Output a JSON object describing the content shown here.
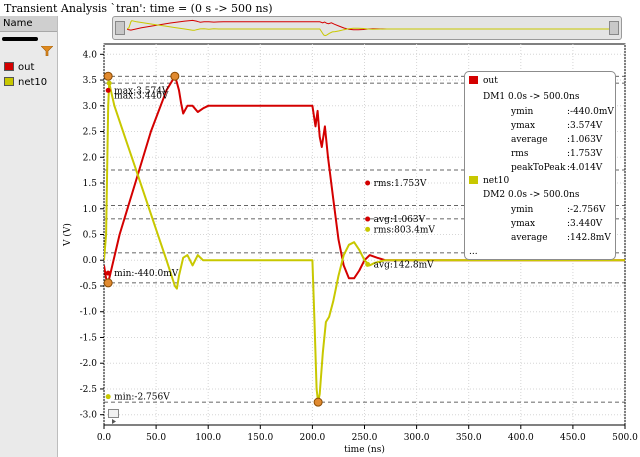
{
  "window": {
    "title": "Transient Analysis `tran': time = (0 s -> 500 ns)"
  },
  "legend": {
    "header": "Name",
    "items": [
      {
        "label": "out",
        "color": "#d40000"
      },
      {
        "label": "net10",
        "color": "#c8c800"
      }
    ]
  },
  "markers": {
    "out_max": "max:3.574V",
    "out_min": "min:-440.0mV",
    "out_rms": "rms:1.753V",
    "out_avg": "avg:1.063V",
    "net10_max": "max:3.440V",
    "net10_min": "min:-2.756V",
    "net10_rms": "rms:803.4mV",
    "net10_avg": "avg:142.8mV"
  },
  "info_box": {
    "out": {
      "name": "out",
      "range": "DM1 0.0s -> 500.0ns",
      "rows": [
        {
          "key": "ymin",
          "value": ":-440.0mV"
        },
        {
          "key": "ymax",
          "value": ":3.574V"
        },
        {
          "key": "average",
          "value": ":1.063V"
        },
        {
          "key": "rms",
          "value": ":1.753V"
        },
        {
          "key": "peakToPeak",
          "value": ":4.014V"
        }
      ]
    },
    "net10": {
      "name": "net10",
      "range": "DM2 0.0s -> 500.0ns",
      "rows": [
        {
          "key": "ymin",
          "value": ":-2.756V"
        },
        {
          "key": "ymax",
          "value": ":3.440V"
        },
        {
          "key": "average",
          "value": ":142.8mV"
        }
      ]
    },
    "more": "..."
  },
  "chart_data": {
    "type": "line",
    "xlabel": "time (ns)",
    "ylabel": "V (V)",
    "xlim": [
      0,
      500
    ],
    "ylim": [
      -3.2,
      4.2
    ],
    "xticks": [
      "0.0",
      "50.0",
      "100.0",
      "150.0",
      "200.0",
      "250.0",
      "300.0",
      "350.0",
      "400.0",
      "450.0",
      "500.0"
    ],
    "yticks": [
      "4.0",
      "3.5",
      "3.0",
      "2.5",
      "2.0",
      "1.5",
      "1.0",
      "0.5",
      "0.0",
      "-0.5",
      "-1.0",
      "-1.5",
      "-2.0",
      "-2.5",
      "-3.0"
    ],
    "grid": true,
    "reference_lines": [
      3.574,
      3.44,
      1.753,
      1.063,
      0.803,
      0.143,
      -0.44,
      -2.756
    ],
    "series": [
      {
        "name": "out",
        "color": "#d40000",
        "x": [
          0,
          2,
          4,
          15,
          30,
          45,
          60,
          68,
          70,
          72,
          74,
          76,
          80,
          85,
          90,
          95,
          100,
          120,
          150,
          180,
          198,
          200,
          203,
          205,
          207,
          209,
          212,
          215,
          220,
          225,
          230,
          235,
          240,
          245,
          250,
          255,
          262,
          270,
          300,
          350,
          400,
          450,
          500
        ],
        "y": [
          -0.1,
          -0.35,
          -0.44,
          0.5,
          1.5,
          2.5,
          3.3,
          3.574,
          3.45,
          3.3,
          3.05,
          2.85,
          3.0,
          3.0,
          2.88,
          2.95,
          3.0,
          3.0,
          3.0,
          3.0,
          3.0,
          3.0,
          2.6,
          2.9,
          2.4,
          2.2,
          2.6,
          2.0,
          1.2,
          0.4,
          -0.1,
          -0.35,
          -0.35,
          -0.2,
          0.0,
          0.1,
          0.05,
          0.0,
          0.0,
          0.0,
          0.0,
          0.0,
          0.0
        ]
      },
      {
        "name": "net10",
        "color": "#c8c800",
        "x": [
          0,
          2,
          4,
          5,
          10,
          20,
          30,
          40,
          50,
          60,
          68,
          70,
          72,
          76,
          80,
          85,
          90,
          95,
          100,
          130,
          160,
          190,
          200,
          202,
          204,
          205.5,
          207,
          210,
          213,
          216,
          220,
          225,
          230,
          235,
          240,
          245,
          250,
          255,
          260,
          270,
          300,
          350,
          400,
          450,
          500
        ],
        "y": [
          0,
          0.5,
          3.0,
          3.44,
          3.0,
          2.4,
          1.8,
          1.2,
          0.6,
          0.0,
          -0.5,
          -0.55,
          -0.3,
          0.05,
          0.1,
          -0.1,
          0.1,
          0.0,
          0.0,
          0.0,
          0.0,
          0.0,
          0.0,
          -1.2,
          -2.5,
          -2.756,
          -2.6,
          -1.8,
          -1.2,
          -1.1,
          -0.8,
          -0.3,
          0.1,
          0.3,
          0.35,
          0.2,
          0.0,
          -0.1,
          -0.05,
          0.0,
          0.0,
          0.0,
          0.0,
          0.0,
          0.0
        ]
      }
    ],
    "points": [
      {
        "series": "out",
        "x": 68,
        "y": 3.574
      },
      {
        "series": "out",
        "x": 4,
        "y": -0.44
      },
      {
        "series": "out",
        "x": 4,
        "y": 3.574
      },
      {
        "series": "out",
        "x": 4,
        "y": 3.3
      },
      {
        "series": "out",
        "x": 4,
        "y": -0.25
      },
      {
        "series": "out",
        "x": 253,
        "y": 1.5
      },
      {
        "series": "out",
        "x": 253,
        "y": 0.8
      },
      {
        "series": "net10",
        "x": 5,
        "y": 3.44
      },
      {
        "series": "net10",
        "x": 205.5,
        "y": -2.756
      },
      {
        "series": "net10",
        "x": 4,
        "y": -2.65
      },
      {
        "series": "net10",
        "x": 253,
        "y": 0.6
      },
      {
        "series": "net10",
        "x": 253,
        "y": -0.08
      }
    ]
  }
}
